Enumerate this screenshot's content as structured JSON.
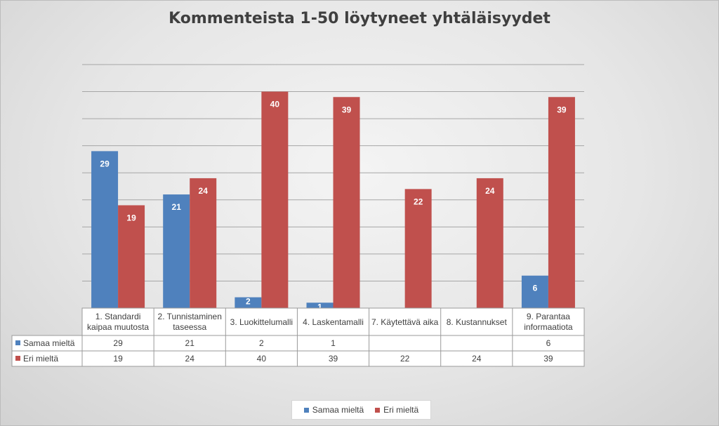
{
  "chart_data": {
    "type": "bar",
    "title": "Kommenteista 1-50 löytyneet yhtäläisyydet",
    "categories": [
      [
        "1. Standardi",
        "kaipaa muutosta"
      ],
      [
        "2. Tunnistaminen",
        "taseessa"
      ],
      [
        "3. Luokittelumalli"
      ],
      [
        "4. Laskentamalli"
      ],
      [
        "7. Käytettävä aika"
      ],
      [
        "8. Kustannukset"
      ],
      [
        "9. Parantaa",
        "informaatiota"
      ]
    ],
    "series": [
      {
        "name": "Samaa mieltä",
        "color": "#4f81bd",
        "values": [
          29,
          21,
          2,
          1,
          null,
          null,
          6
        ]
      },
      {
        "name": "Eri mieltä",
        "color": "#c0504d",
        "values": [
          19,
          24,
          40,
          39,
          22,
          24,
          39
        ]
      }
    ],
    "ylim": [
      0,
      45
    ],
    "grid": true,
    "data_table": true,
    "legend_position": "bottom"
  }
}
